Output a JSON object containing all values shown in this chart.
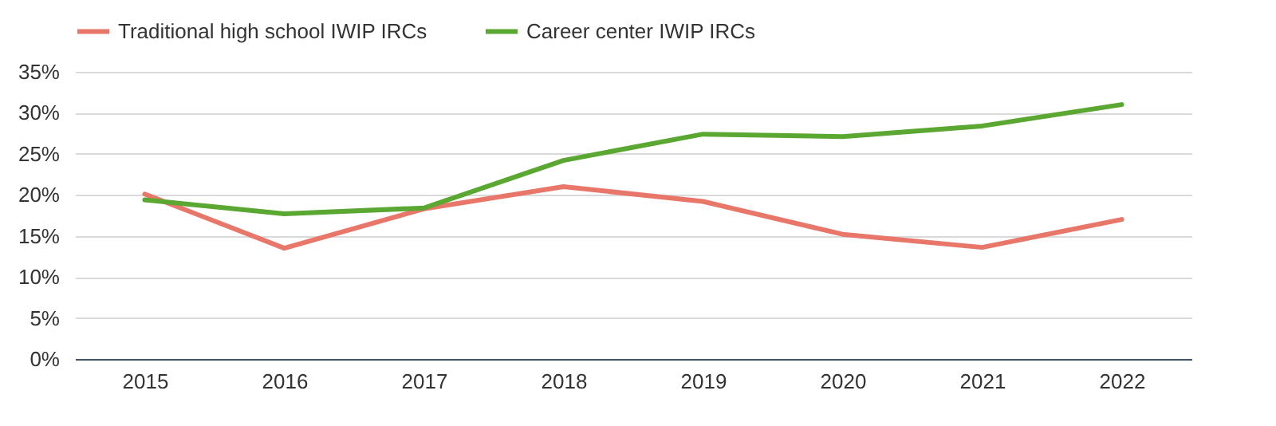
{
  "chart_data": {
    "type": "line",
    "categories": [
      "2015",
      "2016",
      "2017",
      "2018",
      "2019",
      "2020",
      "2021",
      "2022"
    ],
    "series": [
      {
        "name": "Traditional high school IWIP IRCs",
        "color": "#e8776a",
        "values": [
          20.1,
          13.5,
          18.3,
          21.0,
          19.2,
          15.2,
          13.6,
          17.0
        ]
      },
      {
        "name": "Career center IWIP IRCs",
        "color": "#5aa832",
        "values": [
          19.4,
          17.7,
          18.4,
          24.2,
          27.4,
          27.1,
          28.4,
          31.0
        ]
      }
    ],
    "ylim": [
      0,
      35
    ],
    "yticks": [
      {
        "value": 0,
        "label": "0%"
      },
      {
        "value": 5,
        "label": "5%"
      },
      {
        "value": 10,
        "label": "10%"
      },
      {
        "value": 15,
        "label": "15%"
      },
      {
        "value": 20,
        "label": "20%"
      },
      {
        "value": 25,
        "label": "25%"
      },
      {
        "value": 30,
        "label": "30%"
      },
      {
        "value": 35,
        "label": "35%"
      }
    ],
    "grid": "y",
    "legend": "top",
    "marker": "none",
    "line_style": "solid"
  }
}
